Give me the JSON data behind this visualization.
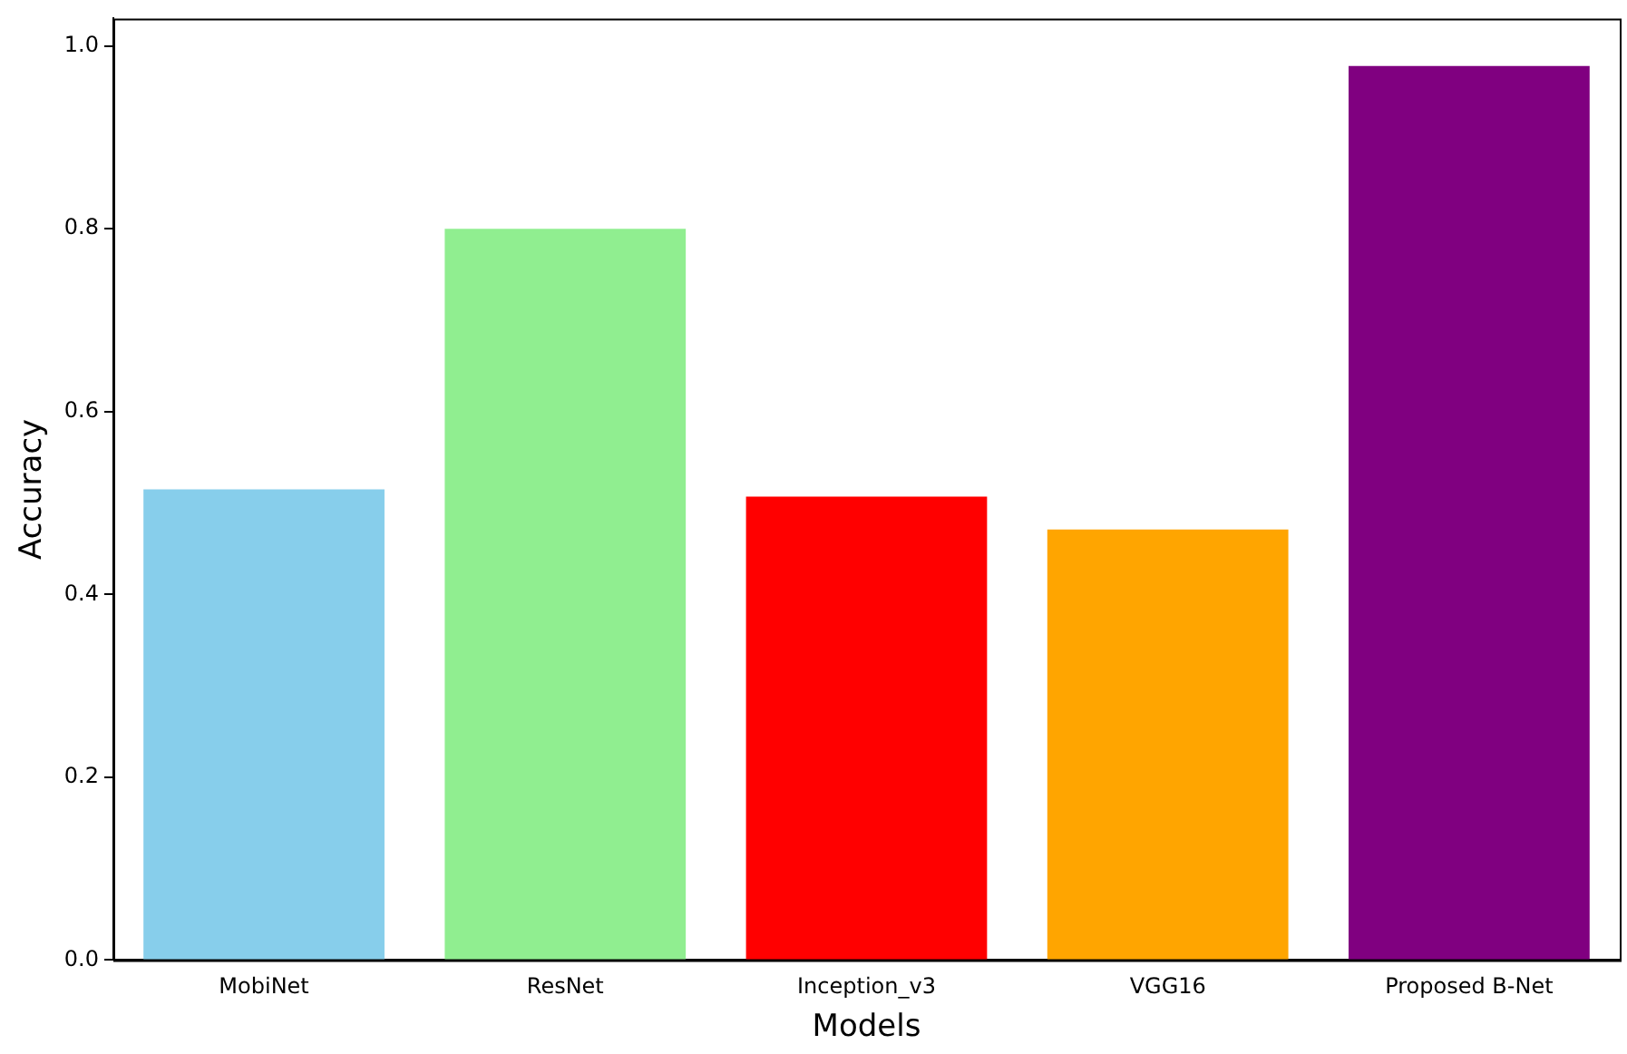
{
  "chart_data": {
    "type": "bar",
    "xlabel": "Models",
    "ylabel": "Accuracy",
    "categories": [
      "MobiNet",
      "ResNet",
      "Inception_v3",
      "VGG16",
      "Proposed B-Net"
    ],
    "values": [
      0.515,
      0.8,
      0.507,
      0.471,
      0.978
    ],
    "colors": [
      "#87ceeb",
      "#90ee90",
      "#ff0000",
      "#ffa500",
      "#800080"
    ],
    "ylim": [
      0,
      1.03
    ],
    "yticks": [
      {
        "value": 0,
        "label": "0.0"
      },
      {
        "value": 0.2,
        "label": "0.2"
      },
      {
        "value": 0.4,
        "label": "0.4"
      },
      {
        "value": 0.6,
        "label": "0.6"
      },
      {
        "value": 0.8,
        "label": "0.8"
      },
      {
        "value": 1,
        "label": "1.0"
      }
    ],
    "grid": false,
    "legend": false
  }
}
